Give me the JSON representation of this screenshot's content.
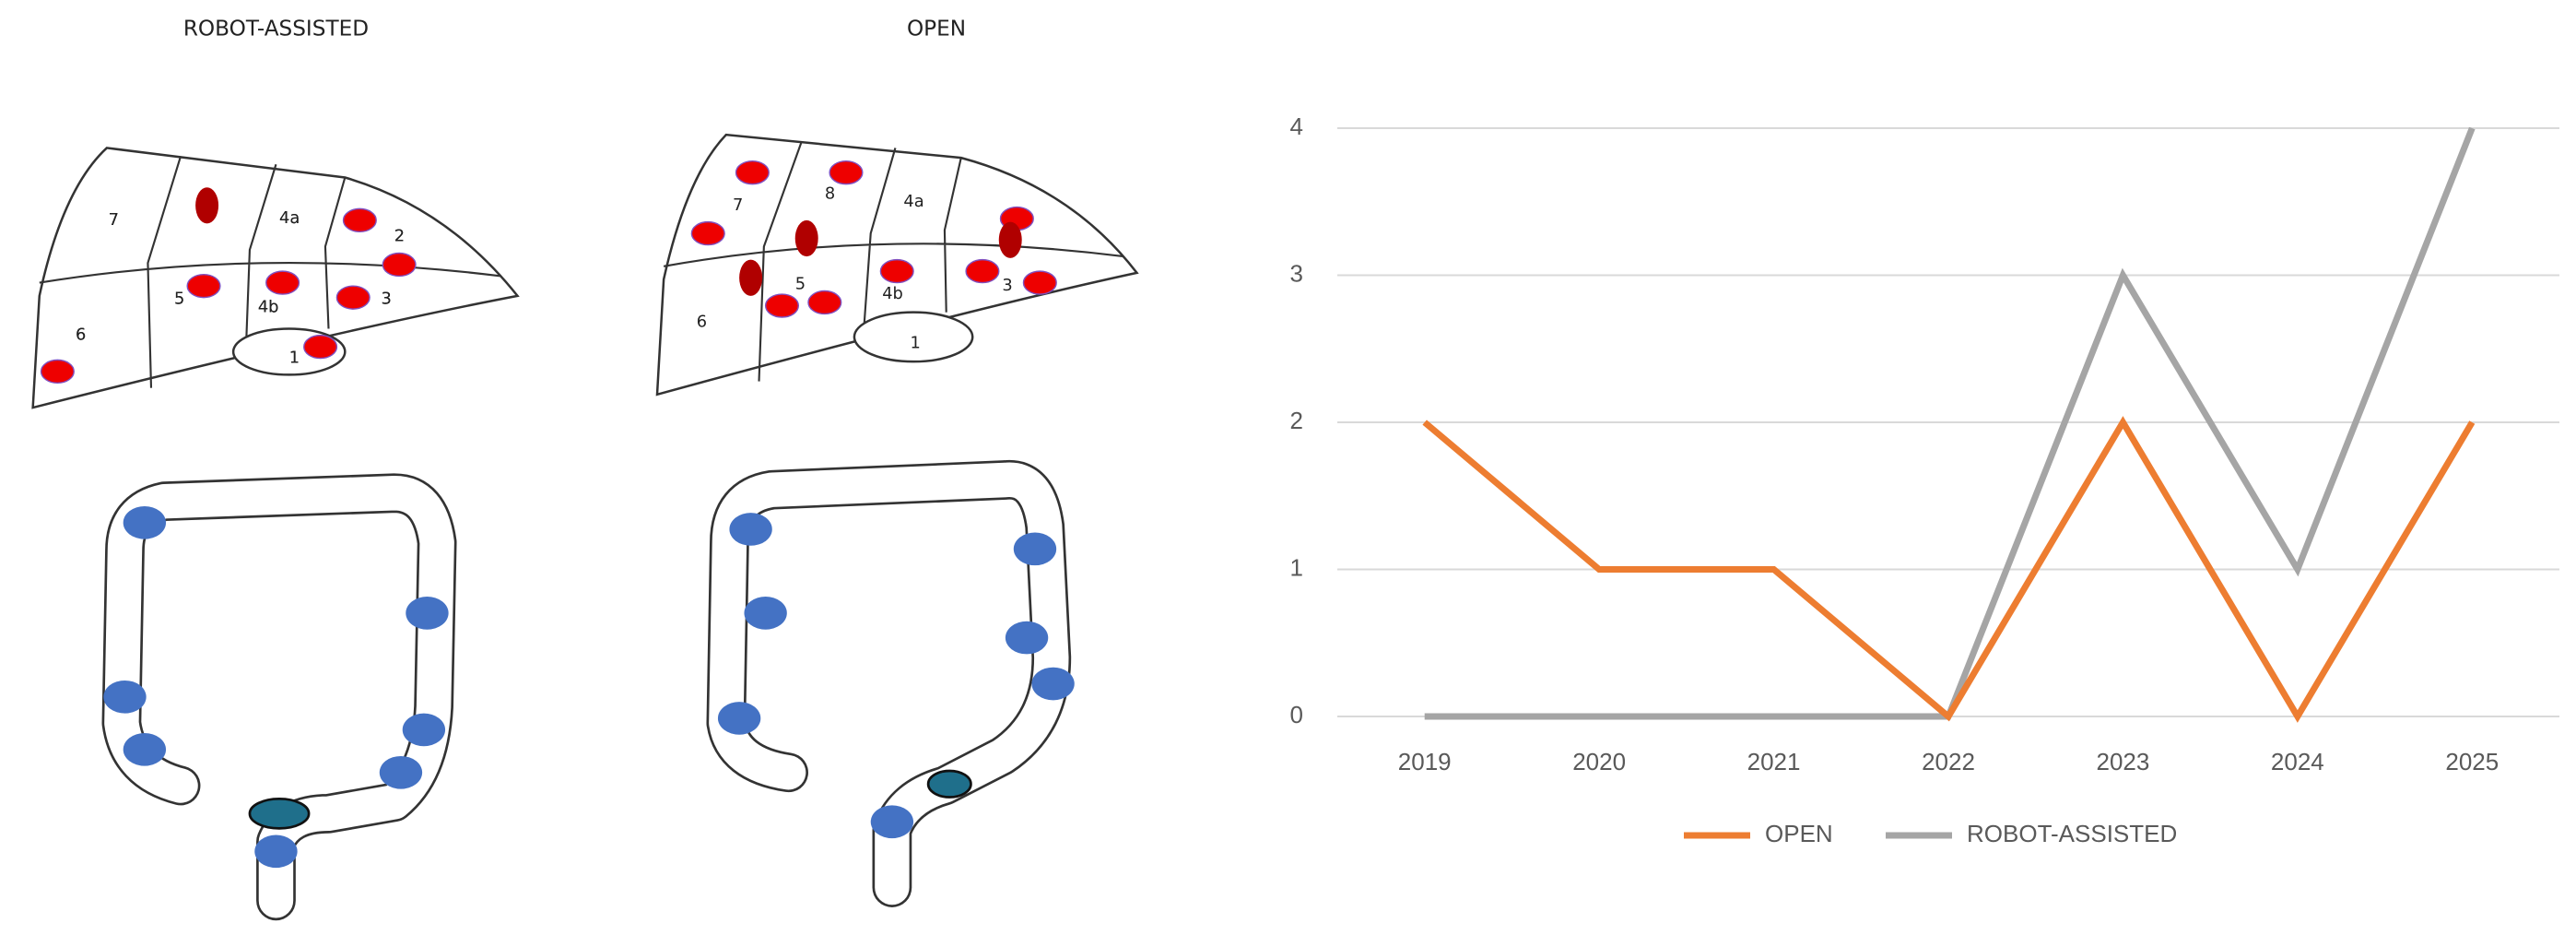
{
  "chart_data": {
    "type": "line",
    "categories": [
      "2019",
      "2020",
      "2021",
      "2022",
      "2023",
      "2024",
      "2025"
    ],
    "series": [
      {
        "name": "OPEN",
        "color": "#ed7d31",
        "values": [
          2,
          1,
          1,
          0,
          2,
          0,
          2
        ]
      },
      {
        "name": "ROBOT-ASSISTED",
        "color": "#a5a5a5",
        "values": [
          0,
          0,
          0,
          0,
          3,
          1,
          4
        ]
      }
    ],
    "ylim": [
      0,
      4
    ],
    "yticks": [
      0,
      1,
      2,
      3,
      4
    ],
    "grid": true,
    "legend": "bottom"
  },
  "illustrations": [
    {
      "title": "ROBOT-ASSISTED",
      "liver_segments": [
        "7",
        "4a",
        "2",
        "5",
        "4b",
        "3",
        "6",
        "1"
      ]
    },
    {
      "title": "OPEN",
      "liver_segments": [
        "7",
        "8",
        "4a",
        "6",
        "5",
        "4b",
        "3",
        "1"
      ]
    }
  ]
}
